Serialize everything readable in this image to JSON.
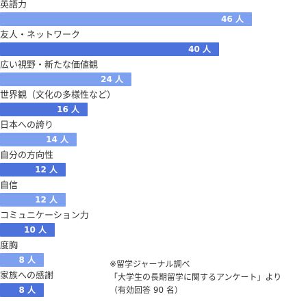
{
  "chart_data": {
    "type": "bar",
    "orientation": "horizontal",
    "categories": [
      "英語力",
      "友人・ネットワーク",
      "広い視野・新たな価値観",
      "世界観（文化の多様性など）",
      "日本への誇り",
      "自分の方向性",
      "自信",
      "コミュニケーション力",
      "度胸",
      "家族への感謝"
    ],
    "values": [
      46,
      40,
      24,
      16,
      14,
      12,
      12,
      10,
      8,
      8
    ],
    "value_labels": [
      "46 人",
      "40 人",
      "24 人",
      "16 人",
      "14 人",
      "12 人",
      "12 人",
      "10 人",
      "8 人",
      "8 人"
    ],
    "value_unit": "人",
    "bar_shades": [
      "light",
      "dark",
      "light",
      "dark",
      "light",
      "dark",
      "light",
      "dark",
      "light",
      "dark"
    ],
    "colors": {
      "light": "#7da1ee",
      "dark": "#4d72dc"
    },
    "xlim": [
      0,
      46
    ],
    "grid": false,
    "legend": "none"
  },
  "note": {
    "line1": "※留学ジャーナル調べ",
    "line2": "「大学生の長期留学に関するアンケート」より",
    "line3": "（有効回答 90 名）"
  }
}
